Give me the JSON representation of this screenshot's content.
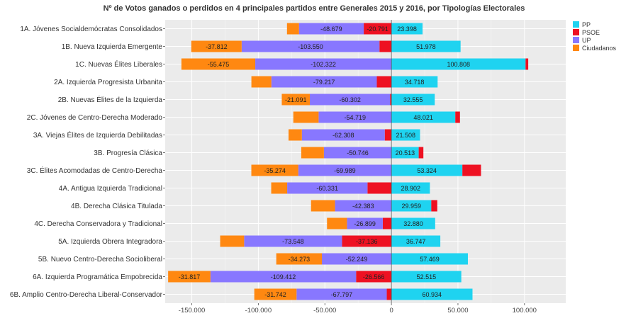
{
  "chart_data": {
    "type": "bar",
    "orientation": "horizontal",
    "stacked": "diverging",
    "title": "Nº de Votos ganados o perdidos en 4 principales partidos entre Generales 2015 y 2016, por Tipologías Electorales",
    "xlabel": "",
    "ylabel": "",
    "xlim": [
      -170000,
      131000
    ],
    "x_ticks": [
      -150000,
      -100000,
      -50000,
      0,
      50000,
      100000
    ],
    "x_tick_labels": [
      "-150.000",
      "-100.000",
      "-50.000",
      "0",
      "50.000",
      "100.000"
    ],
    "grid": true,
    "legend_position": "right",
    "categories": [
      "1A. Jóvenes Socialdemócratas Consolidados",
      "1B. Nueva Izquierda Emergente",
      "1C. Nuevas Élites Liberales",
      "2A. Izquierda Progresista Urbanita",
      "2B. Nuevas Élites de la Izquierda",
      "2C. Jóvenes de Centro-Derecha Moderado",
      "3A. Viejas Élites de Izquierda Debilitadas",
      "3B. Progresía Clásica",
      "3C. Élites Acomodadas de Centro-Derecha",
      "4A. Antigua Izquierda Tradicional",
      "4B. Derecha Clásica Titulada",
      "4C. Derecha Conservadora y Tradicional",
      "5A. Izquierda Obrera Integradora",
      "5B. Nuevo Centro-Derecha Socioliberal",
      "6A. Izquierda Programática Empobrecida",
      "6B. Amplio Centro-Derecha Liberal-Conservador"
    ],
    "series": [
      {
        "name": "PP",
        "color": "#1fd3f0",
        "values": [
          23398,
          51978,
          100808,
          34718,
          32555,
          48021,
          21508,
          20513,
          53324,
          28902,
          29959,
          32880,
          36747,
          57469,
          52515,
          60934
        ],
        "labels": [
          "23.398",
          "51.978",
          "100.808",
          "34.718",
          "32.555",
          "48.021",
          "21.508",
          "20.513",
          "53.324",
          "28.902",
          "29.959",
          "32.880",
          "36.747",
          "57.469",
          "52.515",
          "60.934"
        ]
      },
      {
        "name": "PSOE",
        "color": "#ee1122",
        "values": [
          -20791,
          -9000,
          2000,
          -11000,
          -1000,
          3500,
          -5000,
          3500,
          14000,
          -18000,
          4500,
          -6500,
          -37136,
          0,
          -26566,
          -3500
        ],
        "labels": [
          "-20.791",
          "",
          "",
          "",
          "",
          "",
          "",
          "",
          "",
          "",
          "",
          "",
          "-37.136",
          "",
          "-26.566",
          ""
        ]
      },
      {
        "name": "UP",
        "color": "#8877ff",
        "values": [
          -48679,
          -103550,
          -102322,
          -79217,
          -60302,
          -54719,
          -62308,
          -50746,
          -69989,
          -60331,
          -42383,
          -26899,
          -73548,
          -52249,
          -109412,
          -67797
        ],
        "labels": [
          "-48.679",
          "-103.550",
          "-102.322",
          "-79.217",
          "-60.302",
          "-54.719",
          "-62.308",
          "-50.746",
          "-69.989",
          "-60.331",
          "-42.383",
          "-26.899",
          "-73.548",
          "-52.249",
          "-109.412",
          "-67.797"
        ]
      },
      {
        "name": "Ciudadanos",
        "color": "#ff8811",
        "values": [
          -9000,
          -37812,
          -55475,
          -15000,
          -21091,
          -19000,
          -10000,
          -17000,
          -35274,
          -12000,
          -18000,
          -15000,
          -18000,
          -34273,
          -31817,
          -31742
        ],
        "labels": [
          "",
          "-37.812",
          "-55.475",
          "",
          "-21.091",
          "",
          "",
          "",
          "-35.274",
          "",
          "",
          "",
          "",
          "-34.273",
          "-31.817",
          "-31.742"
        ]
      }
    ]
  }
}
